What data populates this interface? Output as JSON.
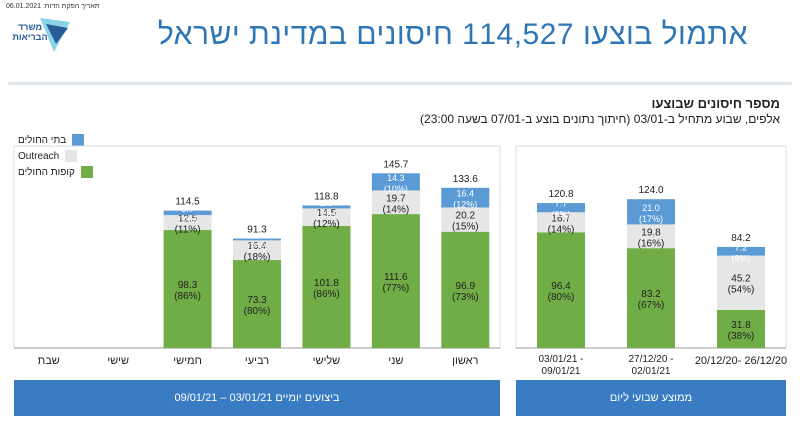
{
  "header": {
    "date_line": "תאריך הפקת הדוח: 06.01.2021",
    "logo_text": "משרד הבריאות",
    "headline": "אתמול בוצעו 114,527 חיסונים במדינת ישראל"
  },
  "chart_title": "מספר חיסונים שבוצעו",
  "chart_subtitle": "אלפים, שבוע מתחיל ב-03/01 (חיתוך נתונים בוצע ב-07/01 בשעה 23:00)",
  "colors": {
    "green": "#70ad47",
    "gray": "#e6e6e6",
    "blue": "#5b9bd5",
    "banner": "#3a7cc3"
  },
  "banners": {
    "daily": "ביצועים יומיים 03/01/21 – 09/01/21",
    "weekly": "ממוצע שבועי ליום"
  },
  "chart_data": [
    {
      "type": "bar",
      "stacked": true,
      "categories": [
        "שבת",
        "שישי",
        "חמישי",
        "רביעי",
        "שלישי",
        "שני",
        "ראשון"
      ],
      "series": [
        {
          "name": "קופות החולים",
          "values": [
            null,
            null,
            98.3,
            73.3,
            101.8,
            111.6,
            96.9
          ],
          "pct": [
            "",
            "",
            "(86%)",
            "(80%)",
            "(86%)",
            "(77%)",
            "(73%)"
          ]
        },
        {
          "name": "Outreach",
          "values": [
            null,
            null,
            12.5,
            16.4,
            14.5,
            19.7,
            20.2
          ],
          "pct": [
            "",
            "",
            "(11%)",
            "(18%)",
            "(12%)",
            "(14%)",
            "(15%)"
          ]
        },
        {
          "name": "בתי החולים",
          "values": [
            null,
            null,
            3.7,
            1.5,
            2.5,
            14.3,
            16.4
          ],
          "pct": [
            "",
            "",
            "(3%)",
            "(2%)",
            "(2%)",
            "(10%)",
            "(12%)"
          ]
        }
      ],
      "totals": [
        null,
        null,
        114.5,
        91.3,
        118.8,
        145.7,
        133.6
      ]
    },
    {
      "type": "bar",
      "stacked": true,
      "categories": [
        "03/01/21 - 09/01/21",
        "27/12/20 - 02/01/21",
        "20/12/20- 26/12/20"
      ],
      "series": [
        {
          "name": "קופות החולים",
          "values": [
            96.4,
            83.2,
            31.8
          ],
          "pct": [
            "(80%)",
            "(67%)",
            "(38%)"
          ]
        },
        {
          "name": "Outreach",
          "values": [
            16.7,
            19.8,
            45.2
          ],
          "pct": [
            "(14%)",
            "(16%)",
            "(54%)"
          ]
        },
        {
          "name": "בתי החולים",
          "values": [
            7.7,
            21.0,
            7.2
          ],
          "pct": [
            "(6%)",
            "(17%)",
            "(9%)"
          ]
        }
      ],
      "totals": [
        120.8,
        124.0,
        84.2
      ]
    }
  ]
}
